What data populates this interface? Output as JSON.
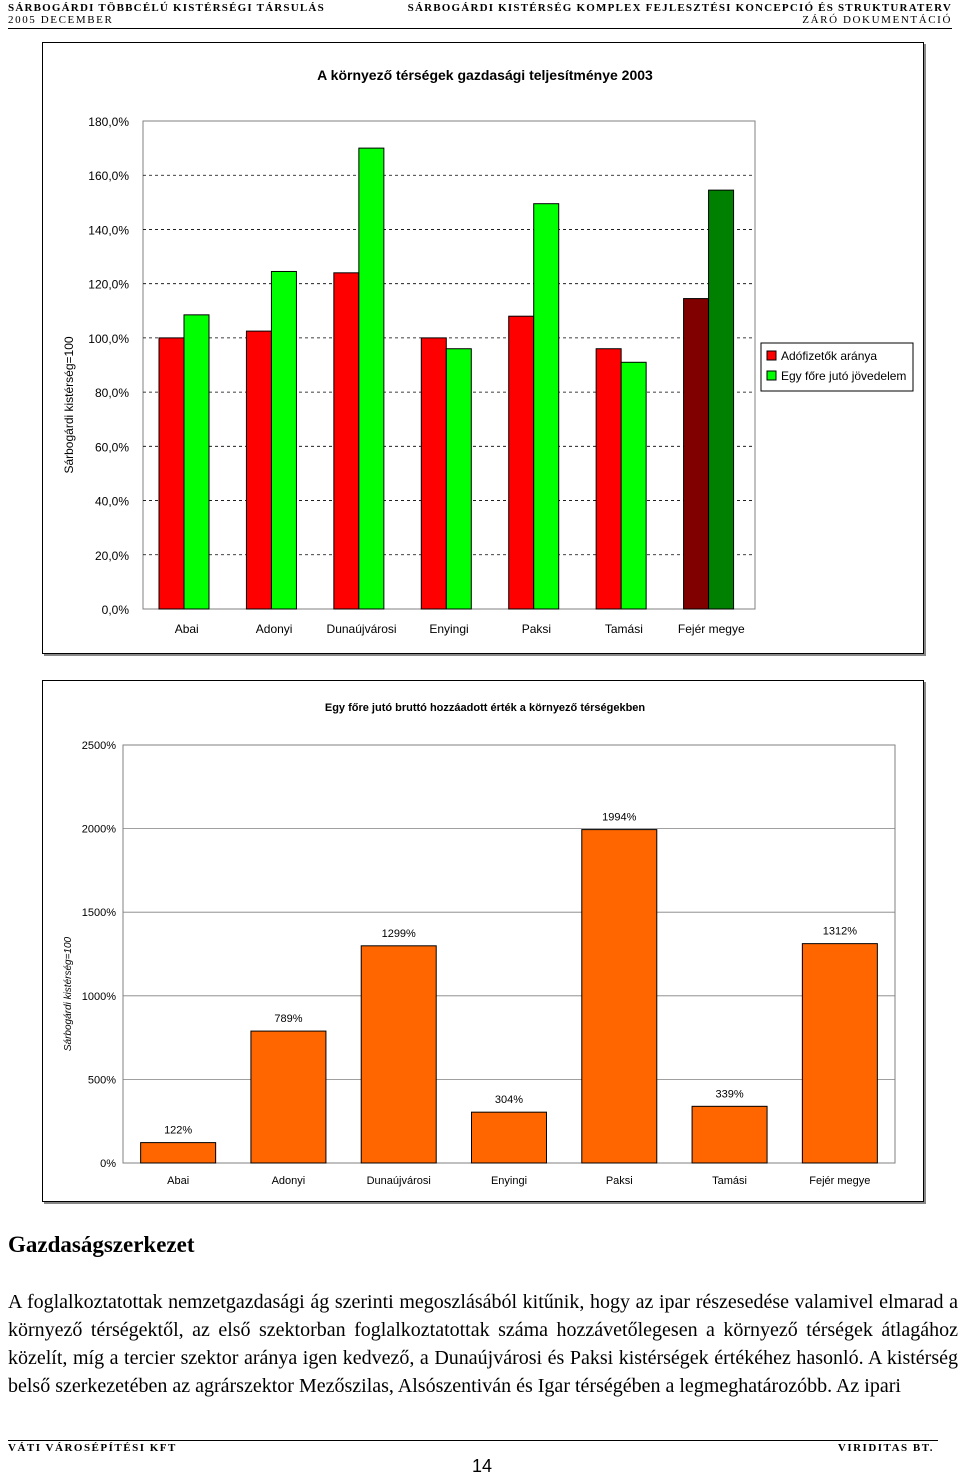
{
  "header": {
    "left_top": "SÁRBOGÁRDI TÖBBCÉLÚ KISTÉRSÉGI TÁRSULÁS",
    "right_top": "SÁRBOGÁRDI KISTÉRSÉG KOMPLEX FEJLESZTÉSI KONCEPCIÓ ÉS STRUKTURATERV",
    "left_bottom": "2005 DECEMBER",
    "right_bottom": "ZÁRÓ DOKUMENTÁCIÓ"
  },
  "chart_data": [
    {
      "type": "bar",
      "title": "A környező térségek gazdasági teljesítménye 2003",
      "xlabel": "",
      "ylabel": "Sárbogárdi kistérség=100",
      "categories": [
        "Abai",
        "Adonyi",
        "Dunaújvárosi",
        "Enyingi",
        "Paksi",
        "Tamási",
        "Fejér megye"
      ],
      "ylim": [
        0,
        180
      ],
      "yticks": [
        "0,0%",
        "20,0%",
        "40,0%",
        "60,0%",
        "80,0%",
        "100,0%",
        "120,0%",
        "140,0%",
        "160,0%",
        "180,0%"
      ],
      "grid": true,
      "legend_position": "right",
      "series": [
        {
          "name": "Adófizetők aránya",
          "color": "#ff0000",
          "highlight_color": "#800000",
          "values": [
            100,
            102.5,
            124,
            100,
            108,
            96,
            114.5
          ]
        },
        {
          "name": "Egy főre jutó jövedelem",
          "color": "#00ff00",
          "highlight_color": "#008000",
          "values": [
            108.5,
            124.5,
            170,
            96,
            149.5,
            91,
            154.5
          ]
        }
      ]
    },
    {
      "type": "bar",
      "title": "Egy főre jutó bruttó hozzáadott érték a környező térségekben",
      "xlabel": "",
      "ylabel": "Sárbogárdi kistérség=100",
      "categories": [
        "Abai",
        "Adonyi",
        "Dunaújvárosi",
        "Enyingi",
        "Paksi",
        "Tamási",
        "Fejér megye"
      ],
      "ylim": [
        0,
        2500
      ],
      "yticks": [
        "0%",
        "500%",
        "1000%",
        "1500%",
        "2000%",
        "2500%"
      ],
      "grid": true,
      "color": "#ff6600",
      "bars": [
        {
          "category": "Abai",
          "value": 122,
          "label": "122%"
        },
        {
          "category": "Adonyi",
          "value": 789,
          "label": "789%"
        },
        {
          "category": "Dunaújvárosi",
          "value": 1299,
          "label": "1299%"
        },
        {
          "category": "Enyingi",
          "value": 304,
          "label": "304%"
        },
        {
          "category": "Paksi",
          "value": 1994,
          "label": "1994%"
        },
        {
          "category": "Tamási",
          "value": 339,
          "label": "339%"
        },
        {
          "category": "Fejér megye",
          "value": 1312,
          "label": "1312%"
        }
      ]
    }
  ],
  "section": {
    "title": "Gazdaságszerkezet",
    "paragraph": "A foglalkoztatottak nemzetgazdasági ág szerinti megoszlásából kitűnik, hogy az ipar részesedése valamivel elmarad a környező térségektől, az első szektorban foglalkoztatottak száma hozzávetőlegesen a környező térségek átlagához közelít, míg a tercier szektor aránya igen kedvező, a Dunaújvárosi és Paksi kistérségek értékéhez hasonló. A kistérség belső szerkezetében az agrárszektor Mezőszilas, Alsószentiván és Igar térségében a legmeghatározóbb. Az ipari"
  },
  "footer": {
    "left": "VÁTI VÁROSÉPÍTÉSI KFT",
    "right": "VIRIDITAS BT.",
    "page": "14"
  }
}
